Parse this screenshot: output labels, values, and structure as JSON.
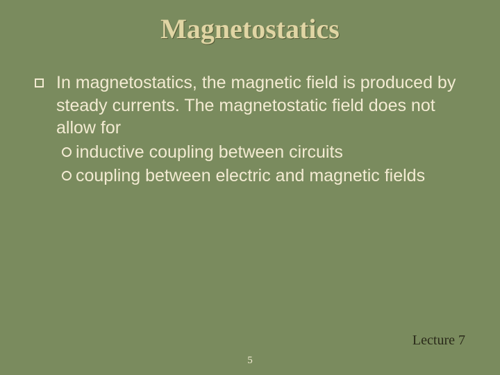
{
  "slide": {
    "title": "Magnetostatics",
    "background_color": "#7a8b5e",
    "title_color": "#e0d5a4",
    "text_color": "#f3ebd2",
    "title_fontsize": 40,
    "body_fontsize": 25,
    "main_bullet": {
      "style": "hollow-square",
      "size": 13,
      "border_color": "#f3ebd2"
    },
    "sub_bullet": {
      "style": "hollow-circle",
      "size": 14,
      "border_color": "#f3ebd2"
    },
    "main_text": "In magnetostatics, the magnetic field is produced by steady currents.  The magnetostatic field does not allow for",
    "subitems": [
      "inductive coupling between circuits",
      "coupling between electric and magnetic fields"
    ],
    "lecture_label": "Lecture 7",
    "lecture_fontsize": 20,
    "lecture_color": "#2a2a1a",
    "page_number": "5",
    "page_number_fontsize": 15
  }
}
